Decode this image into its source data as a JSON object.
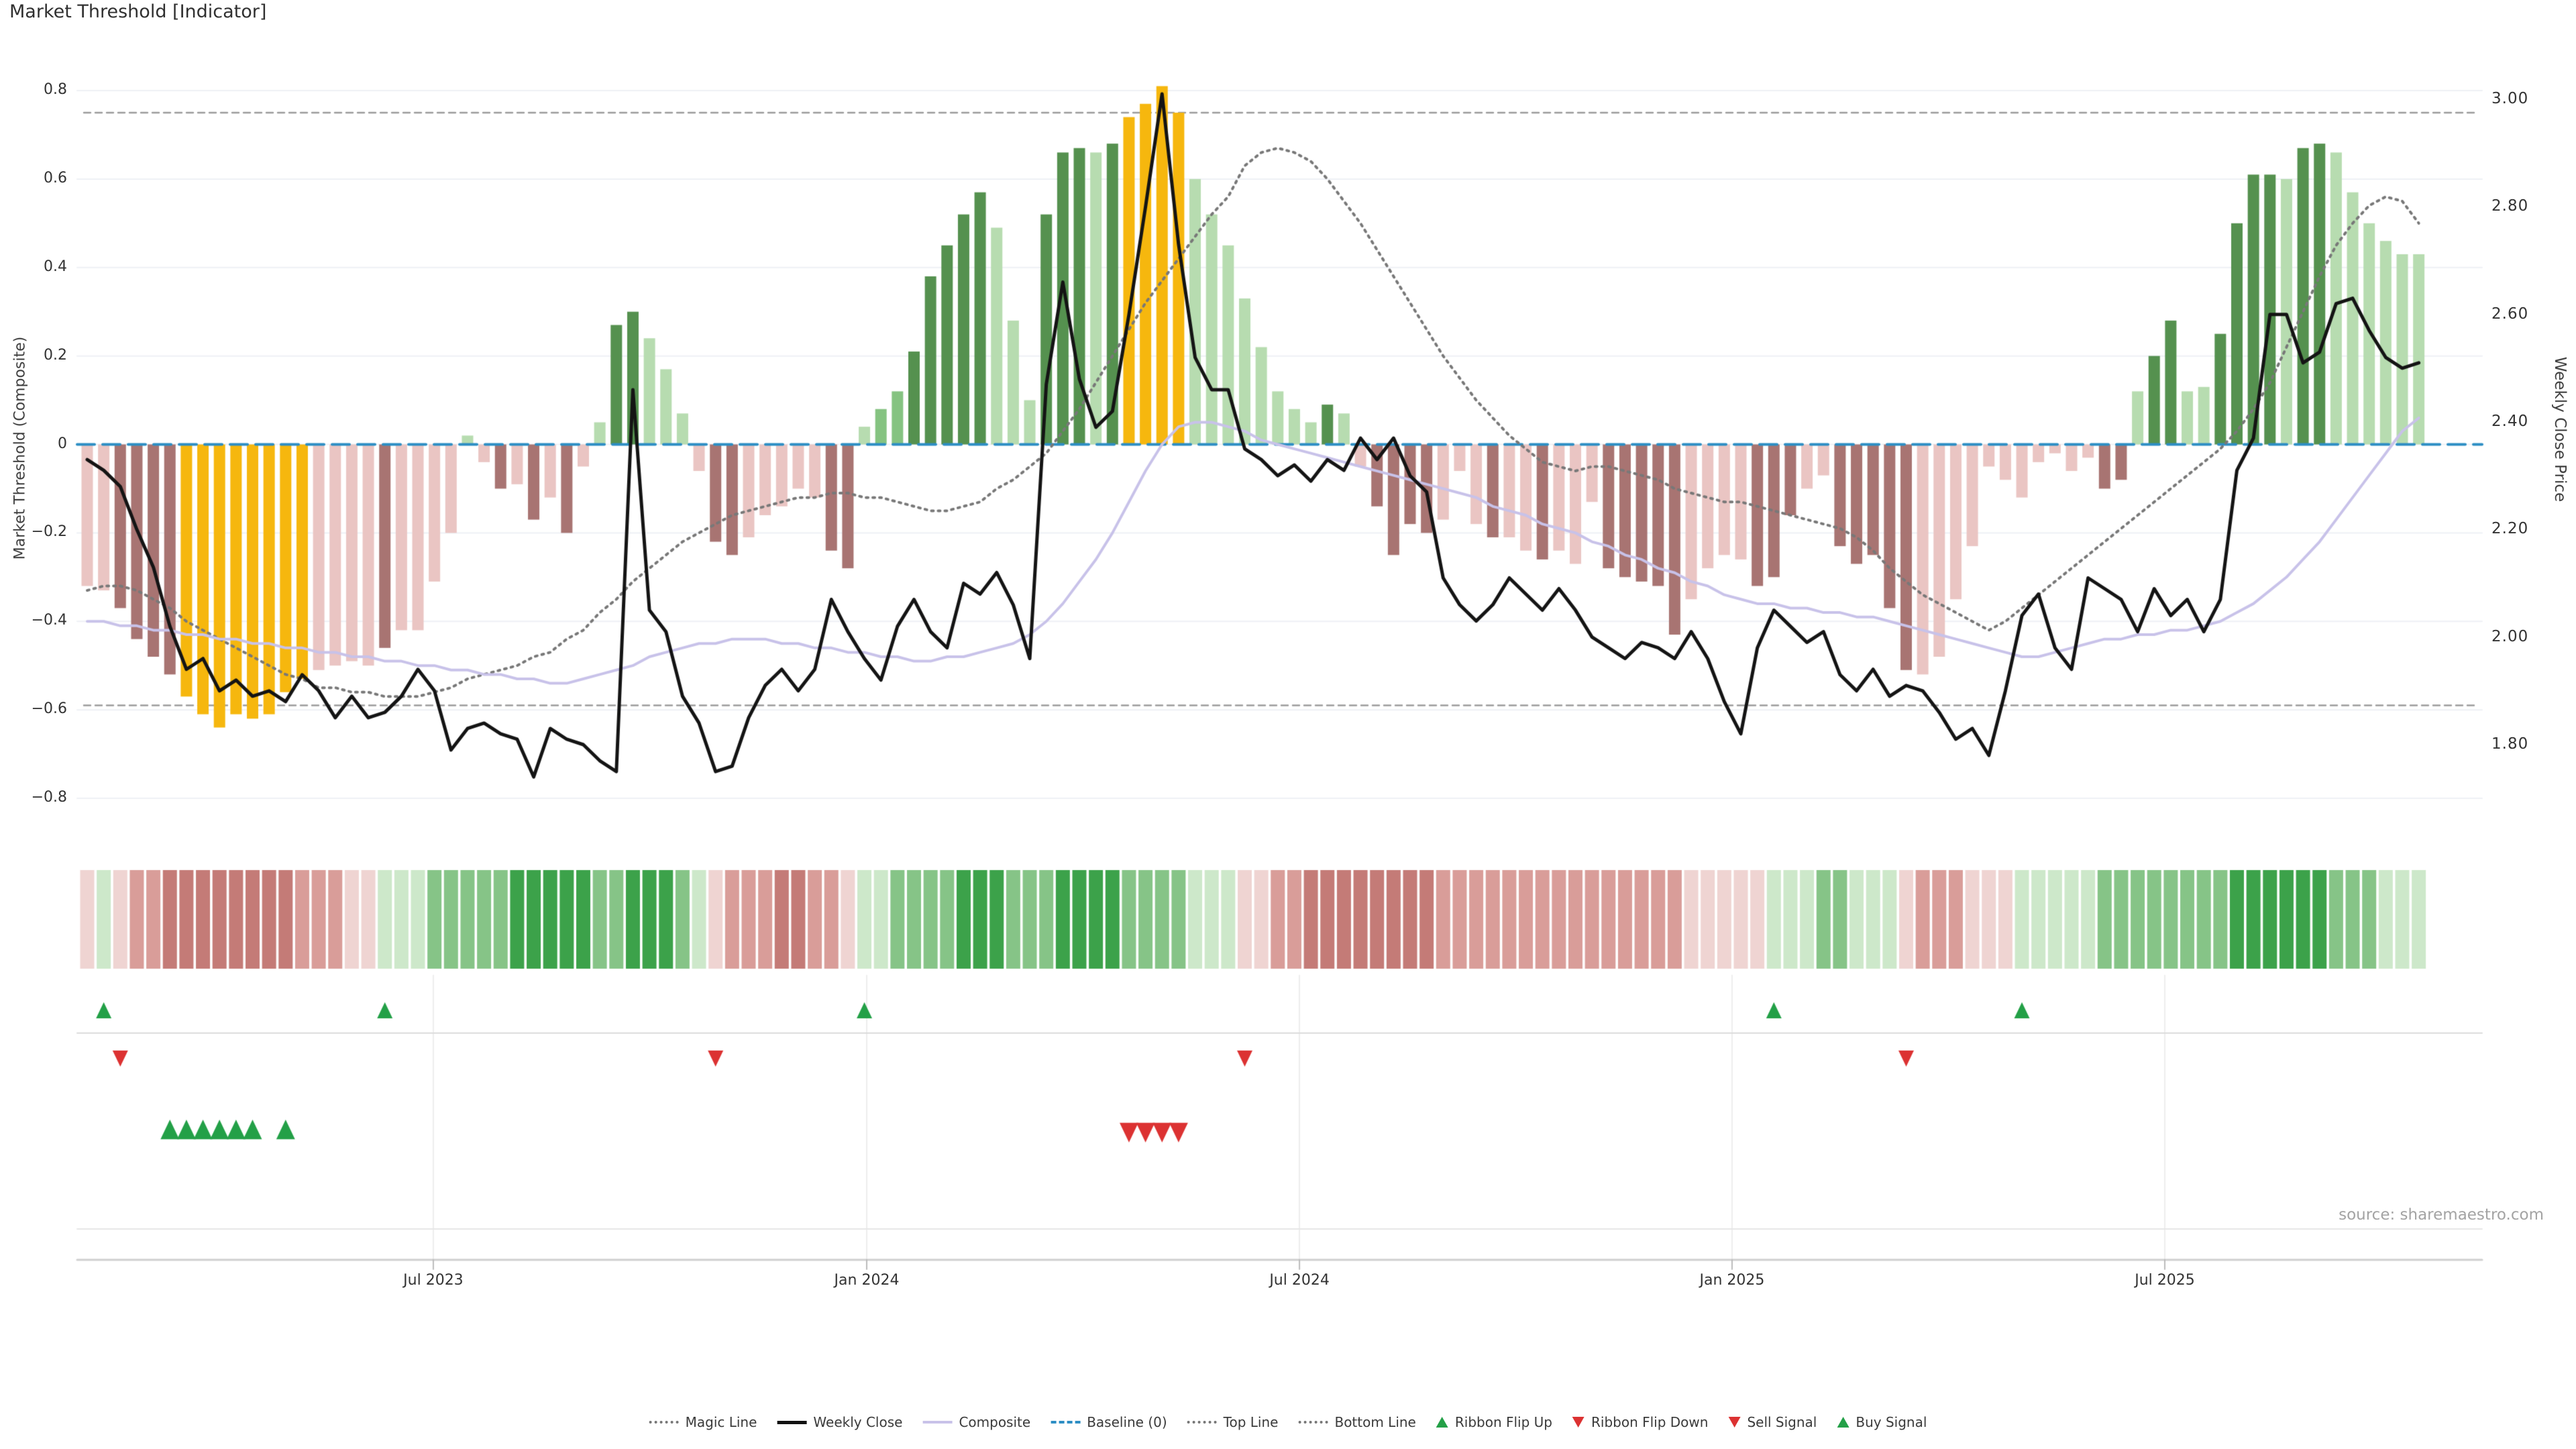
{
  "chart": {
    "title": "Market Threshold [Indicator]",
    "source": "source: sharemaestro.com",
    "left_axis_label": "Market Threshold (Composite)",
    "right_axis_label": "Weekly Close Price"
  },
  "chart_data": {
    "type": "bar+line",
    "x_unit": "weeks",
    "left_axis": {
      "label": "Market Threshold (Composite)",
      "tick_values": [
        0.8,
        0.6,
        0.4,
        0.2,
        0,
        -0.2,
        -0.4,
        -0.6,
        -0.8
      ],
      "tick_labels": [
        "0.8",
        "0.6",
        "0.4",
        "0.2",
        "0",
        "−0.2",
        "−0.4",
        "−0.6",
        "−0.8"
      ],
      "range": [
        -0.88,
        0.84
      ]
    },
    "right_axis": {
      "label": "Weekly Close Price",
      "tick_values": [
        3.0,
        2.8,
        2.6,
        2.4,
        2.2,
        2.0,
        1.8
      ],
      "tick_labels": [
        "3.00",
        "2.80",
        "2.60",
        "2.40",
        "2.20",
        "2.00",
        "1.80"
      ]
    },
    "x_ticks": {
      "weeks": [
        20.93,
        47.14,
        73.31,
        99.47,
        125.64
      ],
      "labels": [
        "Jul 2023",
        "Jan 2024",
        "Jul 2024",
        "Jan 2025",
        "Jul 2025"
      ]
    },
    "reference_lines": {
      "top_line": 0.75,
      "bottom_line": -0.59,
      "baseline": 0
    },
    "bars": {
      "values": [
        -0.32,
        -0.33,
        -0.37,
        -0.44,
        -0.48,
        -0.52,
        -0.57,
        -0.61,
        -0.64,
        -0.61,
        -0.62,
        -0.61,
        -0.56,
        -0.53,
        -0.51,
        -0.5,
        -0.49,
        -0.5,
        -0.46,
        -0.42,
        -0.42,
        -0.31,
        -0.2,
        0.02,
        -0.04,
        -0.1,
        -0.09,
        -0.17,
        -0.12,
        -0.2,
        -0.05,
        0.05,
        0.27,
        0.3,
        0.24,
        0.17,
        0.07,
        -0.06,
        -0.22,
        -0.25,
        -0.21,
        -0.16,
        -0.14,
        -0.1,
        -0.12,
        -0.24,
        -0.28,
        0.04,
        0.08,
        0.12,
        0.21,
        0.38,
        0.45,
        0.52,
        0.57,
        0.49,
        0.28,
        0.1,
        0.52,
        0.66,
        0.67,
        0.66,
        0.68,
        0.74,
        0.77,
        0.81,
        0.75,
        0.6,
        0.52,
        0.45,
        0.33,
        0.22,
        0.12,
        0.08,
        0.05,
        0.09,
        0.07,
        -0.05,
        -0.14,
        -0.25,
        -0.18,
        -0.2,
        -0.17,
        -0.06,
        -0.18,
        -0.21,
        -0.21,
        -0.24,
        -0.26,
        -0.24,
        -0.27,
        -0.13,
        -0.28,
        -0.3,
        -0.31,
        -0.32,
        -0.43,
        -0.35,
        -0.28,
        -0.25,
        -0.26,
        -0.32,
        -0.3,
        -0.16,
        -0.1,
        -0.07,
        -0.23,
        -0.27,
        -0.25,
        -0.37,
        -0.51,
        -0.52,
        -0.48,
        -0.35,
        -0.23,
        -0.05,
        -0.08,
        -0.12,
        -0.04,
        -0.02,
        -0.06,
        -0.03,
        -0.1,
        -0.08,
        0.12,
        0.2,
        0.28,
        0.12,
        0.13,
        0.25,
        0.5,
        0.61,
        0.61,
        0.6,
        0.67,
        0.68,
        0.66,
        0.57,
        0.5,
        0.46,
        0.43,
        0.43
      ],
      "colors": "ppmmmmggggggggppppmpppplpmpmpmplddlllpmmpppppmmlMMdddddllldddldgggglllllllldlpmmmmpppmppmpppmmmmmppppmmmppmmmmmpppppppppppmmlddllddddlddllllll",
      "color_map": {
        "p": "#eac5c3",
        "m": "#a87472",
        "g": "#f6b70e",
        "l": "#b7dcb0",
        "M": "#85c381",
        "d": "#55914f"
      }
    },
    "weekly_close": [
      2.33,
      2.31,
      2.28,
      2.2,
      2.13,
      2.02,
      1.94,
      1.96,
      1.9,
      1.92,
      1.89,
      1.9,
      1.88,
      1.93,
      1.9,
      1.85,
      1.89,
      1.85,
      1.86,
      1.89,
      1.94,
      1.9,
      1.79,
      1.83,
      1.84,
      1.82,
      1.81,
      1.74,
      1.83,
      1.81,
      1.8,
      1.77,
      1.75,
      2.46,
      2.05,
      2.01,
      1.89,
      1.84,
      1.75,
      1.76,
      1.85,
      1.91,
      1.94,
      1.9,
      1.94,
      2.07,
      2.01,
      1.96,
      1.92,
      2.02,
      2.07,
      2.01,
      1.98,
      2.1,
      2.08,
      2.12,
      2.06,
      1.96,
      2.47,
      2.66,
      2.48,
      2.39,
      2.42,
      2.6,
      2.8,
      3.01,
      2.73,
      2.52,
      2.46,
      2.46,
      2.35,
      2.33,
      2.3,
      2.32,
      2.29,
      2.33,
      2.31,
      2.37,
      2.33,
      2.37,
      2.3,
      2.27,
      2.11,
      2.06,
      2.03,
      2.06,
      2.11,
      2.08,
      2.05,
      2.09,
      2.05,
      2.0,
      1.98,
      1.96,
      1.99,
      1.98,
      1.96,
      2.01,
      1.96,
      1.88,
      1.82,
      1.98,
      2.05,
      2.02,
      1.99,
      2.01,
      1.93,
      1.9,
      1.94,
      1.89,
      1.91,
      1.9,
      1.86,
      1.81,
      1.83,
      1.78,
      1.9,
      2.04,
      2.08,
      1.98,
      1.94,
      2.11,
      2.09,
      2.07,
      2.01,
      2.09,
      2.04,
      2.07,
      2.01,
      2.07,
      2.31,
      2.37,
      2.6,
      2.6,
      2.51,
      2.53,
      2.62,
      2.63,
      2.57,
      2.52,
      2.5,
      2.51
    ],
    "composite": [
      -0.4,
      -0.4,
      -0.41,
      -0.41,
      -0.42,
      -0.42,
      -0.43,
      -0.43,
      -0.44,
      -0.44,
      -0.45,
      -0.45,
      -0.46,
      -0.46,
      -0.47,
      -0.47,
      -0.48,
      -0.48,
      -0.49,
      -0.49,
      -0.5,
      -0.5,
      -0.51,
      -0.51,
      -0.52,
      -0.52,
      -0.53,
      -0.53,
      -0.54,
      -0.54,
      -0.53,
      -0.52,
      -0.51,
      -0.5,
      -0.48,
      -0.47,
      -0.46,
      -0.45,
      -0.45,
      -0.44,
      -0.44,
      -0.44,
      -0.45,
      -0.45,
      -0.46,
      -0.46,
      -0.47,
      -0.47,
      -0.48,
      -0.48,
      -0.49,
      -0.49,
      -0.48,
      -0.48,
      -0.47,
      -0.46,
      -0.45,
      -0.43,
      -0.4,
      -0.36,
      -0.31,
      -0.26,
      -0.2,
      -0.13,
      -0.06,
      0.0,
      0.04,
      0.05,
      0.05,
      0.04,
      0.03,
      0.01,
      0.0,
      -0.01,
      -0.02,
      -0.03,
      -0.04,
      -0.05,
      -0.06,
      -0.07,
      -0.08,
      -0.09,
      -0.1,
      -0.11,
      -0.12,
      -0.14,
      -0.15,
      -0.16,
      -0.18,
      -0.19,
      -0.2,
      -0.22,
      -0.23,
      -0.25,
      -0.26,
      -0.28,
      -0.29,
      -0.31,
      -0.32,
      -0.34,
      -0.35,
      -0.36,
      -0.36,
      -0.37,
      -0.37,
      -0.38,
      -0.38,
      -0.39,
      -0.39,
      -0.4,
      -0.41,
      -0.42,
      -0.43,
      -0.44,
      -0.45,
      -0.46,
      -0.47,
      -0.48,
      -0.48,
      -0.47,
      -0.46,
      -0.45,
      -0.44,
      -0.44,
      -0.43,
      -0.43,
      -0.42,
      -0.42,
      -0.41,
      -0.4,
      -0.38,
      -0.36,
      -0.33,
      -0.3,
      -0.26,
      -0.22,
      -0.17,
      -0.12,
      -0.07,
      -0.02,
      0.03,
      0.06
    ],
    "magic_line": [
      -0.33,
      -0.32,
      -0.32,
      -0.33,
      -0.35,
      -0.37,
      -0.4,
      -0.42,
      -0.44,
      -0.46,
      -0.48,
      -0.5,
      -0.52,
      -0.53,
      -0.55,
      -0.55,
      -0.56,
      -0.56,
      -0.57,
      -0.57,
      -0.57,
      -0.56,
      -0.55,
      -0.53,
      -0.52,
      -0.51,
      -0.5,
      -0.48,
      -0.47,
      -0.44,
      -0.42,
      -0.38,
      -0.35,
      -0.31,
      -0.28,
      -0.25,
      -0.22,
      -0.2,
      -0.18,
      -0.16,
      -0.15,
      -0.14,
      -0.13,
      -0.12,
      -0.12,
      -0.11,
      -0.11,
      -0.12,
      -0.12,
      -0.13,
      -0.14,
      -0.15,
      -0.15,
      -0.14,
      -0.13,
      -0.1,
      -0.08,
      -0.05,
      -0.02,
      0.03,
      0.08,
      0.14,
      0.2,
      0.26,
      0.32,
      0.37,
      0.42,
      0.47,
      0.52,
      0.56,
      0.63,
      0.66,
      0.67,
      0.66,
      0.64,
      0.6,
      0.55,
      0.5,
      0.44,
      0.38,
      0.32,
      0.26,
      0.2,
      0.15,
      0.1,
      0.06,
      0.02,
      -0.01,
      -0.04,
      -0.05,
      -0.06,
      -0.05,
      -0.05,
      -0.06,
      -0.07,
      -0.08,
      -0.1,
      -0.11,
      -0.12,
      -0.13,
      -0.13,
      -0.14,
      -0.15,
      -0.16,
      -0.17,
      -0.18,
      -0.19,
      -0.21,
      -0.24,
      -0.28,
      -0.31,
      -0.34,
      -0.36,
      -0.38,
      -0.4,
      -0.42,
      -0.4,
      -0.37,
      -0.34,
      -0.31,
      -0.28,
      -0.25,
      -0.22,
      -0.19,
      -0.16,
      -0.13,
      -0.1,
      -0.07,
      -0.04,
      -0.01,
      0.03,
      0.08,
      0.14,
      0.22,
      0.3,
      0.38,
      0.45,
      0.5,
      0.54,
      0.56,
      0.55,
      0.5
    ],
    "ribbon_levels": [
      -1,
      1,
      -1,
      -2,
      -2,
      -3,
      -3,
      -3,
      -3,
      -3,
      -3,
      -3,
      -3,
      -2,
      -2,
      -2,
      -1,
      -1,
      1,
      1,
      1,
      2,
      2,
      2,
      2,
      2,
      3,
      3,
      3,
      3,
      3,
      2,
      2,
      3,
      3,
      3,
      2,
      1,
      -1,
      -2,
      -2,
      -2,
      -3,
      -3,
      -2,
      -2,
      -1,
      1,
      1,
      2,
      2,
      2,
      2,
      3,
      3,
      3,
      2,
      2,
      2,
      3,
      3,
      3,
      3,
      2,
      2,
      2,
      2,
      1,
      1,
      1,
      -1,
      -1,
      -2,
      -2,
      -3,
      -3,
      -3,
      -3,
      -3,
      -3,
      -3,
      -3,
      -2,
      -2,
      -2,
      -2,
      -2,
      -2,
      -2,
      -2,
      -2,
      -2,
      -2,
      -2,
      -2,
      -2,
      -2,
      -1,
      -1,
      -1,
      -1,
      -1,
      1,
      1,
      1,
      2,
      2,
      1,
      1,
      1,
      -1,
      -2,
      -2,
      -2,
      -1,
      -1,
      -1,
      1,
      1,
      1,
      1,
      1,
      2,
      2,
      2,
      2,
      2,
      2,
      2,
      2,
      3,
      3,
      3,
      3,
      3,
      3,
      2,
      2,
      2,
      1,
      1,
      1
    ],
    "ribbon_color_map": {
      "-3": "#c47b77",
      "-2": "#d99d99",
      "-1": "#efd4d2",
      "1": "#cde8ca",
      "2": "#86c487",
      "3": "#3ca24a"
    },
    "signals": {
      "ribbon_flip_up_weeks": [
        1,
        18,
        47,
        102,
        117
      ],
      "ribbon_flip_down_weeks": [
        2,
        38,
        70,
        110
      ],
      "buy_signal_weeks": [
        5,
        6,
        7,
        8,
        9,
        10,
        12
      ],
      "sell_signal_weeks": [
        63,
        64,
        65,
        66
      ],
      "up_color": "#23a047",
      "down_color": "#dc3232"
    },
    "line_colors": {
      "weekly_close": "#141414",
      "composite": "#c8c2e9",
      "magic_line": "#787878",
      "baseline": "#2d8ec4",
      "top_bottom": "#9b9b9b"
    }
  },
  "legend": {
    "items": [
      {
        "name": "legend-item-magic-line",
        "label": "Magic Line",
        "marker": "dotted"
      },
      {
        "name": "legend-item-weekly-close",
        "label": "Weekly Close",
        "marker": "thick"
      },
      {
        "name": "legend-item-composite",
        "label": "Composite",
        "marker": "lav"
      },
      {
        "name": "legend-item-baseline",
        "label": "Baseline (0)",
        "marker": "dashed"
      },
      {
        "name": "legend-item-top-line",
        "label": "Top Line",
        "marker": "dotted"
      },
      {
        "name": "legend-item-bottom-line",
        "label": "Bottom Line",
        "marker": "dotted"
      },
      {
        "name": "legend-item-ribbon-flip-up",
        "label": "Ribbon Flip Up",
        "marker": "tri-up"
      },
      {
        "name": "legend-item-ribbon-flip-down",
        "label": "Ribbon Flip Down",
        "marker": "tri-down"
      },
      {
        "name": "legend-item-sell-signal",
        "label": "Sell Signal",
        "marker": "tri-down"
      },
      {
        "name": "legend-item-buy-signal",
        "label": "Buy Signal",
        "marker": "tri-up"
      }
    ]
  }
}
